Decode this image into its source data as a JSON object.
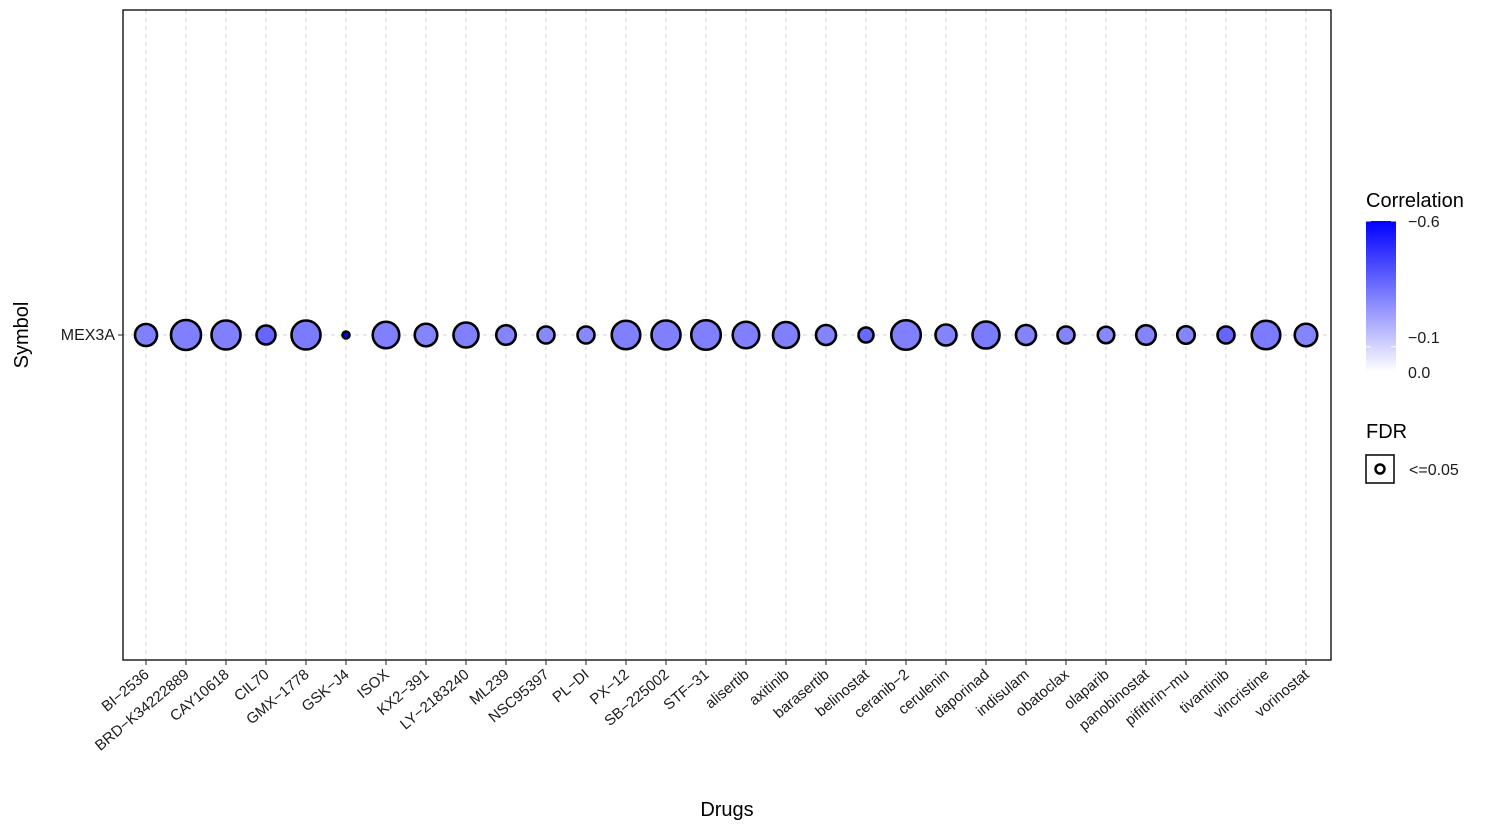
{
  "chart_data": {
    "type": "scatter",
    "xlabel": "Drugs",
    "ylabel": "Symbol",
    "y_categories": [
      "MEX3A"
    ],
    "x_categories": [
      "BI-2536",
      "BRD-K34222889",
      "CAY10618",
      "CIL70",
      "GMX-1778",
      "GSK-J4",
      "ISOX",
      "KX2-391",
      "LY-2183240",
      "ML239",
      "NSC95397",
      "PL-DI",
      "PX-12",
      "SB-225002",
      "STF-31",
      "alisertib",
      "axitinib",
      "barasertib",
      "belinostat",
      "ceranib-2",
      "cerulenin",
      "daporinad",
      "indisulam",
      "obatoclax",
      "olaparib",
      "panobinostat",
      "pifithrin-mu",
      "tivantinib",
      "vincristine",
      "vorinostat"
    ],
    "x_tick_labels": [
      "BI−2536",
      "BRD−K34222889",
      "CAY10618",
      "CIL70",
      "GMX−1778",
      "GSK−J4",
      "ISOX",
      "KX2−391",
      "LY−2183240",
      "ML239",
      "NSC95397",
      "PL−DI",
      "PX−12",
      "SB−225002",
      "STF−31",
      "alisertib",
      "axitinib",
      "barasertib",
      "belinostat",
      "ceranib−2",
      "cerulenin",
      "daporinad",
      "indisulam",
      "obatoclax",
      "olaparib",
      "panobinostat",
      "pifithrin−mu",
      "tivantinib",
      "vincristine",
      "vorinostat"
    ],
    "points": [
      {
        "drug": "BI-2536",
        "symbol": "MEX3A",
        "correlation": -0.3,
        "fdr": "<=0.05",
        "size_level": 0.6
      },
      {
        "drug": "BRD-K34222889",
        "symbol": "MEX3A",
        "correlation": -0.3,
        "fdr": "<=0.05",
        "size_level": 0.92
      },
      {
        "drug": "CAY10618",
        "symbol": "MEX3A",
        "correlation": -0.3,
        "fdr": "<=0.05",
        "size_level": 0.88
      },
      {
        "drug": "CIL70",
        "symbol": "MEX3A",
        "correlation": -0.36,
        "fdr": "<=0.05",
        "size_level": 0.48
      },
      {
        "drug": "GMX-1778",
        "symbol": "MEX3A",
        "correlation": -0.31,
        "fdr": "<=0.05",
        "size_level": 0.88
      },
      {
        "drug": "GSK-J4",
        "symbol": "MEX3A",
        "correlation": -0.6,
        "fdr": "<=0.05",
        "size_level": 0.0
      },
      {
        "drug": "ISOX",
        "symbol": "MEX3A",
        "correlation": -0.3,
        "fdr": "<=0.05",
        "size_level": 0.78
      },
      {
        "drug": "KX2-391",
        "symbol": "MEX3A",
        "correlation": -0.29,
        "fdr": "<=0.05",
        "size_level": 0.62
      },
      {
        "drug": "LY-2183240",
        "symbol": "MEX3A",
        "correlation": -0.3,
        "fdr": "<=0.05",
        "size_level": 0.72
      },
      {
        "drug": "ML239",
        "symbol": "MEX3A",
        "correlation": -0.29,
        "fdr": "<=0.05",
        "size_level": 0.5
      },
      {
        "drug": "NSC95397",
        "symbol": "MEX3A",
        "correlation": -0.28,
        "fdr": "<=0.05",
        "size_level": 0.4
      },
      {
        "drug": "PL-DI",
        "symbol": "MEX3A",
        "correlation": -0.28,
        "fdr": "<=0.05",
        "size_level": 0.4
      },
      {
        "drug": "PX-12",
        "symbol": "MEX3A",
        "correlation": -0.3,
        "fdr": "<=0.05",
        "size_level": 0.86
      },
      {
        "drug": "SB-225002",
        "symbol": "MEX3A",
        "correlation": -0.3,
        "fdr": "<=0.05",
        "size_level": 0.88
      },
      {
        "drug": "STF-31",
        "symbol": "MEX3A",
        "correlation": -0.3,
        "fdr": "<=0.05",
        "size_level": 0.9
      },
      {
        "drug": "alisertib",
        "symbol": "MEX3A",
        "correlation": -0.3,
        "fdr": "<=0.05",
        "size_level": 0.78
      },
      {
        "drug": "axitinib",
        "symbol": "MEX3A",
        "correlation": -0.3,
        "fdr": "<=0.05",
        "size_level": 0.76
      },
      {
        "drug": "barasertib",
        "symbol": "MEX3A",
        "correlation": -0.29,
        "fdr": "<=0.05",
        "size_level": 0.52
      },
      {
        "drug": "belinostat",
        "symbol": "MEX3A",
        "correlation": -0.35,
        "fdr": "<=0.05",
        "size_level": 0.32
      },
      {
        "drug": "ceranib-2",
        "symbol": "MEX3A",
        "correlation": -0.3,
        "fdr": "<=0.05",
        "size_level": 0.9
      },
      {
        "drug": "cerulenin",
        "symbol": "MEX3A",
        "correlation": -0.29,
        "fdr": "<=0.05",
        "size_level": 0.56
      },
      {
        "drug": "daporinad",
        "symbol": "MEX3A",
        "correlation": -0.31,
        "fdr": "<=0.05",
        "size_level": 0.8
      },
      {
        "drug": "indisulam",
        "symbol": "MEX3A",
        "correlation": -0.29,
        "fdr": "<=0.05",
        "size_level": 0.52
      },
      {
        "drug": "obatoclax",
        "symbol": "MEX3A",
        "correlation": -0.29,
        "fdr": "<=0.05",
        "size_level": 0.4
      },
      {
        "drug": "olaparib",
        "symbol": "MEX3A",
        "correlation": -0.28,
        "fdr": "<=0.05",
        "size_level": 0.38
      },
      {
        "drug": "panobinostat",
        "symbol": "MEX3A",
        "correlation": -0.29,
        "fdr": "<=0.05",
        "size_level": 0.5
      },
      {
        "drug": "pifithrin-mu",
        "symbol": "MEX3A",
        "correlation": -0.29,
        "fdr": "<=0.05",
        "size_level": 0.42
      },
      {
        "drug": "tivantinib",
        "symbol": "MEX3A",
        "correlation": -0.36,
        "fdr": "<=0.05",
        "size_level": 0.4
      },
      {
        "drug": "vincristine",
        "symbol": "MEX3A",
        "correlation": -0.31,
        "fdr": "<=0.05",
        "size_level": 0.86
      },
      {
        "drug": "vorinostat",
        "symbol": "MEX3A",
        "correlation": -0.29,
        "fdr": "<=0.05",
        "size_level": 0.62
      }
    ],
    "color_scale": {
      "domain": [
        0.0,
        -0.6
      ],
      "low_color": "#ffffff",
      "high_color": "#0000ff"
    },
    "legends": {
      "color": {
        "title": "Correlation",
        "ticks": [
          {
            "value": -0.6,
            "label": "−0.6"
          },
          {
            "value": -0.1,
            "label": "−0.1"
          },
          {
            "value": 0.0,
            "label": "0.0"
          }
        ]
      },
      "fdr": {
        "title": "FDR",
        "entries": [
          "<=0.05"
        ]
      }
    },
    "grid": true,
    "legend_position": "right"
  }
}
